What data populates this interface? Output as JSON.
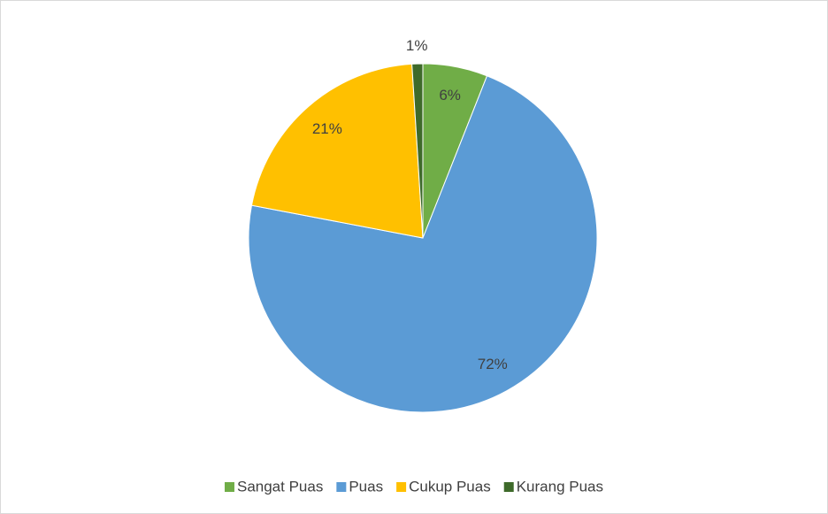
{
  "chart_data": {
    "type": "pie",
    "categories": [
      "Sangat Puas",
      "Puas",
      "Cukup Puas",
      "Kurang Puas"
    ],
    "values": [
      6,
      72,
      21,
      1
    ],
    "value_labels": [
      "6%",
      "72%",
      "21%",
      "1%"
    ],
    "colors": [
      "#70ad47",
      "#5b9bd5",
      "#ffc000",
      "#3e6a2a"
    ],
    "legend": "bottom"
  }
}
